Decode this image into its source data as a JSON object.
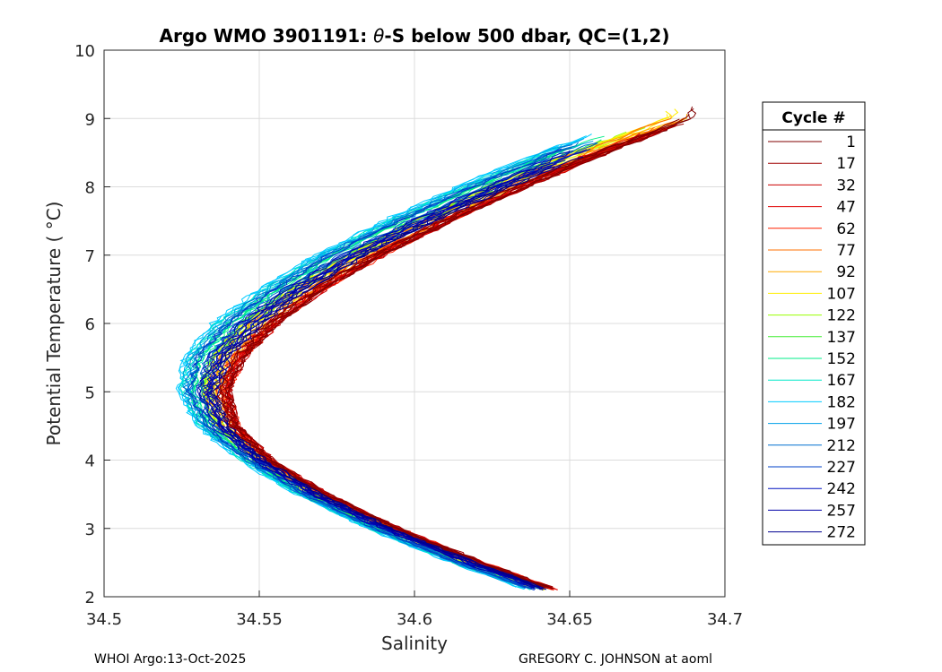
{
  "chart_data": {
    "type": "line",
    "title_prefix": "Argo WMO 3901191: ",
    "title_theta": "θ",
    "title_suffix": "-S below 500 dbar,  QC=(1,2)",
    "xlabel": "Salinity",
    "ylabel": "Potential Temperature ( °C)",
    "xlim": [
      34.5,
      34.7
    ],
    "ylim": [
      2,
      10
    ],
    "xticks": [
      34.5,
      34.55,
      34.6,
      34.65,
      34.7
    ],
    "xtick_labels": [
      "34.5",
      "34.55",
      "34.6",
      "34.65",
      "34.7"
    ],
    "yticks": [
      2,
      3,
      4,
      5,
      6,
      7,
      8,
      9,
      10
    ],
    "ytick_labels": [
      "2",
      "3",
      "4",
      "5",
      "6",
      "7",
      "8",
      "9",
      "10"
    ],
    "grid": true,
    "legend": {
      "title": "Cycle #",
      "placement": "outside-right",
      "entries": [
        {
          "label": "1",
          "color": "#800000"
        },
        {
          "label": "17",
          "color": "#a00000"
        },
        {
          "label": "32",
          "color": "#cc0000"
        },
        {
          "label": "47",
          "color": "#e00000"
        },
        {
          "label": "62",
          "color": "#ff2000"
        },
        {
          "label": "77",
          "color": "#ff7000"
        },
        {
          "label": "92",
          "color": "#ffaa00"
        },
        {
          "label": "107",
          "color": "#ffee00"
        },
        {
          "label": "122",
          "color": "#99ff00"
        },
        {
          "label": "137",
          "color": "#44ee33"
        },
        {
          "label": "152",
          "color": "#00ee88"
        },
        {
          "label": "167",
          "color": "#00e8c8"
        },
        {
          "label": "182",
          "color": "#00ccff"
        },
        {
          "label": "197",
          "color": "#00a0e8"
        },
        {
          "label": "212",
          "color": "#0070d0"
        },
        {
          "label": "227",
          "color": "#0040c8"
        },
        {
          "label": "242",
          "color": "#0010c0"
        },
        {
          "label": "257",
          "color": "#0000a8"
        },
        {
          "label": "272",
          "color": "#000090"
        }
      ]
    },
    "series_template": {
      "comment_free": true,
      "theta": [
        2.1,
        2.5,
        3.0,
        3.5,
        4.0,
        4.5,
        5.0,
        5.5,
        6.0,
        6.5,
        7.0,
        7.5,
        8.0,
        8.5,
        9.0
      ],
      "salinity_cool_group": [
        34.636,
        34.612,
        34.585,
        34.562,
        34.544,
        34.53,
        34.524,
        34.526,
        34.535,
        34.55,
        34.568,
        34.59,
        34.614,
        34.64,
        34.672
      ],
      "salinity_warm_group": [
        34.646,
        34.622,
        34.595,
        34.572,
        34.554,
        34.543,
        34.54,
        34.545,
        34.556,
        34.571,
        34.59,
        34.612,
        34.636,
        34.662,
        34.69
      ]
    }
  },
  "footer": {
    "left": "WHOI Argo:13-Oct-2025",
    "right": "GREGORY C. JOHNSON at aoml"
  }
}
